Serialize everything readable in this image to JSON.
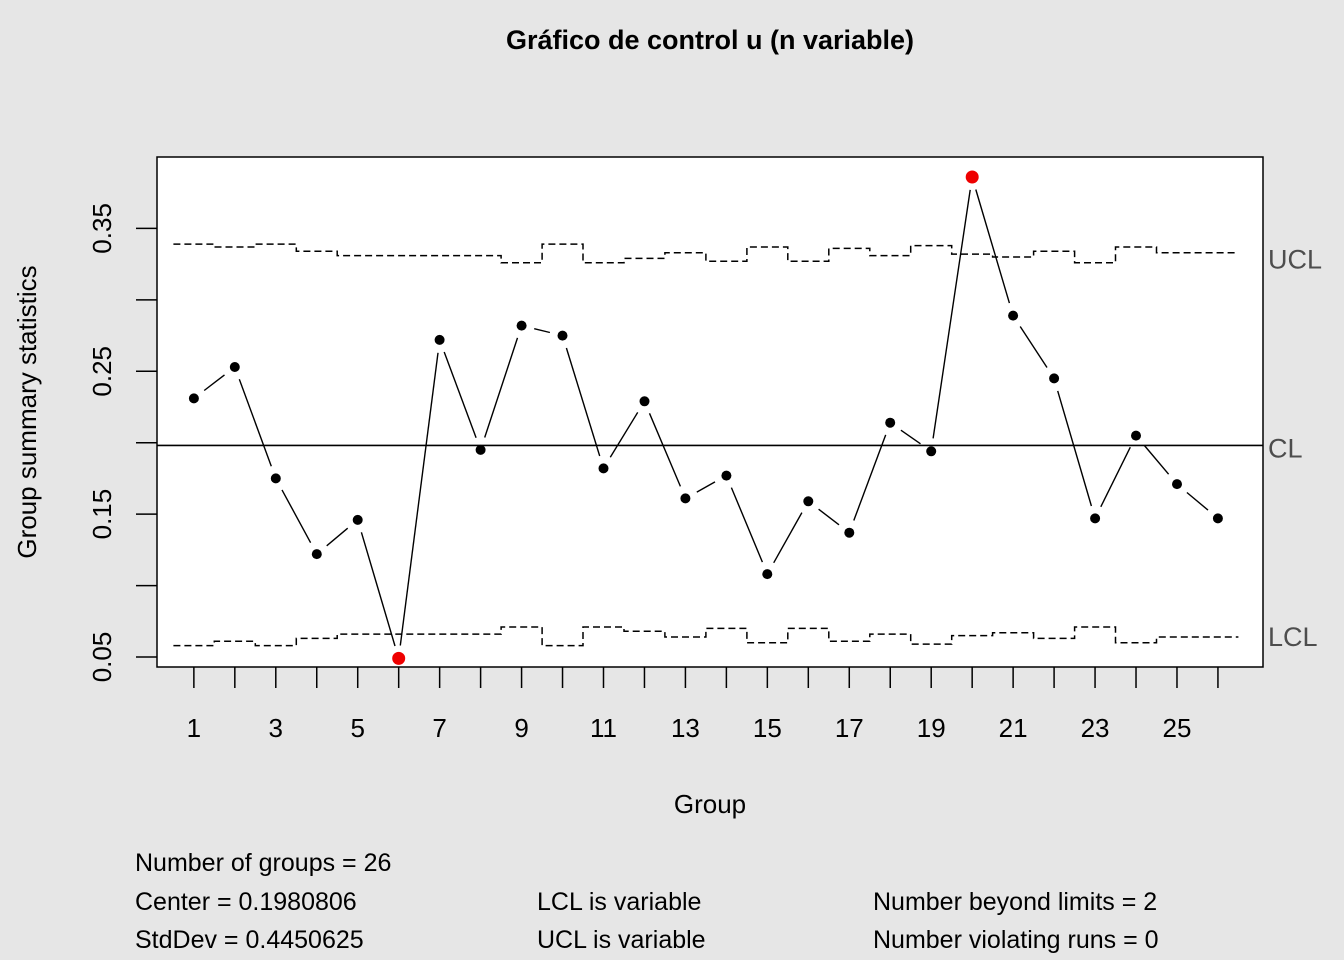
{
  "chart_data": {
    "type": "line",
    "title": "Gráfico de control u (n variable)",
    "xlabel": "Group",
    "ylabel": "Group summary statistics",
    "x": [
      1,
      2,
      3,
      4,
      5,
      6,
      7,
      8,
      9,
      10,
      11,
      12,
      13,
      14,
      15,
      16,
      17,
      18,
      19,
      20,
      21,
      22,
      23,
      24,
      25,
      26
    ],
    "values": [
      0.231,
      0.253,
      0.175,
      0.122,
      0.146,
      0.049,
      0.272,
      0.195,
      0.282,
      0.275,
      0.182,
      0.229,
      0.161,
      0.177,
      0.108,
      0.159,
      0.137,
      0.214,
      0.194,
      0.386,
      0.289,
      0.245,
      0.147,
      0.205,
      0.171,
      0.147
    ],
    "ucl": [
      0.339,
      0.337,
      0.339,
      0.334,
      0.331,
      0.331,
      0.331,
      0.331,
      0.326,
      0.339,
      0.326,
      0.329,
      0.333,
      0.327,
      0.337,
      0.327,
      0.336,
      0.331,
      0.338,
      0.332,
      0.33,
      0.334,
      0.326,
      0.337,
      0.333,
      0.333
    ],
    "lcl": [
      0.058,
      0.061,
      0.058,
      0.063,
      0.066,
      0.066,
      0.066,
      0.066,
      0.071,
      0.058,
      0.071,
      0.068,
      0.064,
      0.07,
      0.06,
      0.07,
      0.061,
      0.066,
      0.059,
      0.065,
      0.067,
      0.063,
      0.071,
      0.06,
      0.064,
      0.064
    ],
    "center": 0.1980806,
    "out_of_control": [
      6,
      20
    ],
    "ylim": [
      0.043,
      0.4
    ],
    "xlim": [
      0.1,
      27.1
    ],
    "yticks": [
      0.05,
      0.1,
      0.15,
      0.2,
      0.25,
      0.3,
      0.35
    ],
    "ytick_labels": [
      "0.05",
      "",
      "0.15",
      "",
      "0.25",
      "",
      "0.35"
    ],
    "xtick_labels": [
      "1",
      "3",
      "5",
      "7",
      "9",
      "11",
      "13",
      "15",
      "17",
      "19",
      "21",
      "23",
      "25"
    ],
    "limit_labels": {
      "ucl": "UCL",
      "cl": "CL",
      "lcl": "LCL"
    },
    "colors": {
      "points": "#000000",
      "violations": "#ee0000",
      "background": "#e6e6e6",
      "plot_bg": "#ffffff"
    }
  },
  "stats": {
    "groups": "Number of groups = 26",
    "center": "Center = 0.1980806",
    "stddev": "StdDev = 0.4450625",
    "lcl_note": "LCL is variable",
    "ucl_note": "UCL is variable",
    "beyond": "Number beyond limits = 2",
    "runs": "Number violating runs = 0"
  }
}
